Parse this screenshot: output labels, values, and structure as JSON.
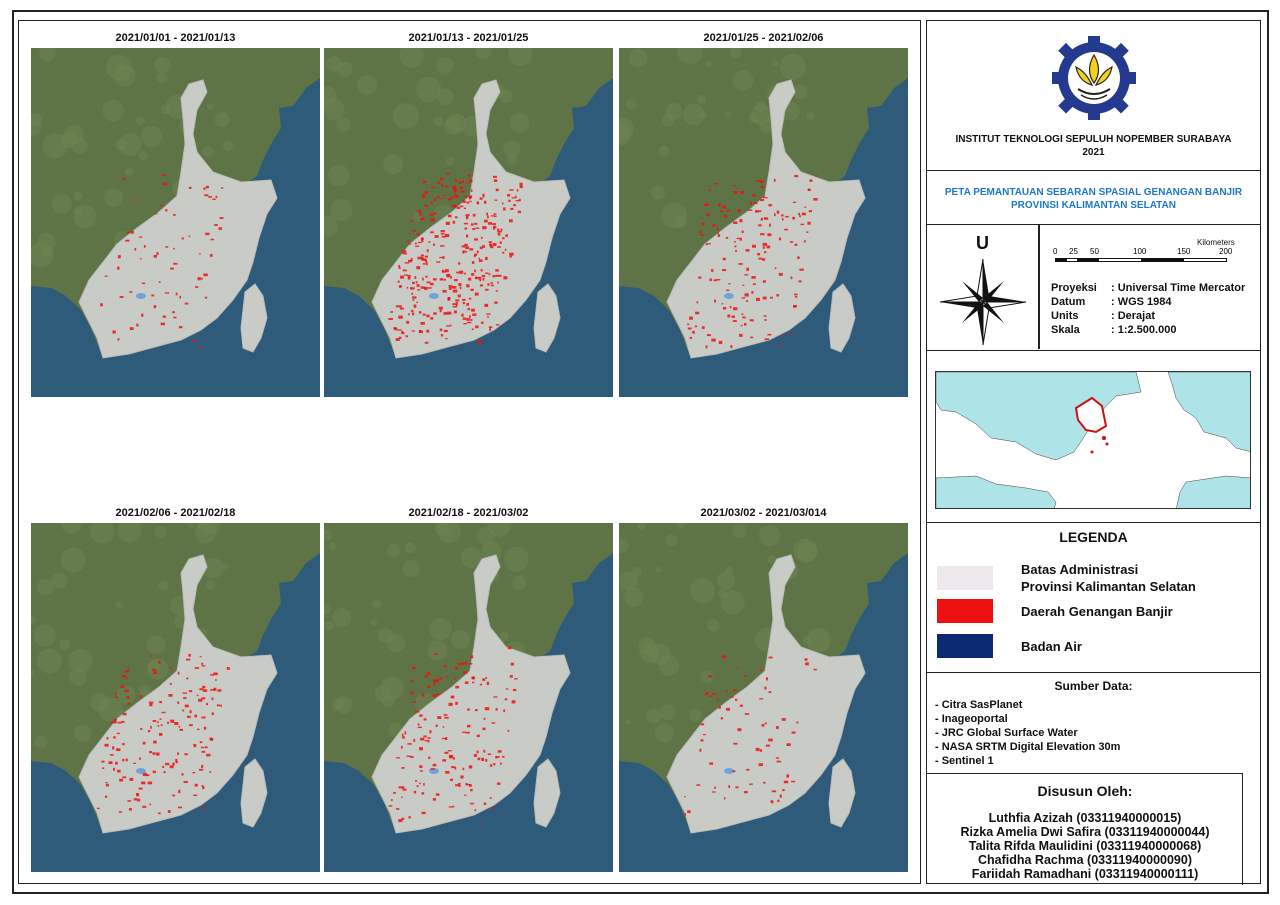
{
  "panels": [
    {
      "title": "2021/01/01 - 2021/01/13",
      "flood_level": "low"
    },
    {
      "title": "2021/01/13 - 2021/01/25",
      "flood_level": "high"
    },
    {
      "title": "2021/01/25 - 2021/02/06",
      "flood_level": "medium"
    },
    {
      "title": "2021/02/06 - 2021/02/18",
      "flood_level": "medium"
    },
    {
      "title": "2021/02/18 - 2021/03/02",
      "flood_level": "medium"
    },
    {
      "title": "2021/03/02 - 2021/03/014",
      "flood_level": "low"
    }
  ],
  "header": {
    "institution": "INSTITUT TEKNOLOGI SEPULUH NOPEMBER SURABAYA",
    "year": "2021"
  },
  "map_title": {
    "line1": "PETA PEMANTAUAN SEBARAN SPASIAL GENANGAN BANJIR",
    "line2": "PROVINSI KALIMANTAN SELATAN"
  },
  "north_arrow": {
    "label": "U"
  },
  "scale_bar": {
    "unit": "Kilometers",
    "ticks": [
      "0",
      "25",
      "50",
      "100",
      "150",
      "200"
    ]
  },
  "projection": [
    {
      "key": "Proyeksi",
      "value": ": Universal Time Mercator"
    },
    {
      "key": "Datum",
      "value": ": WGS 1984"
    },
    {
      "key": "Units",
      "value": ": Derajat"
    },
    {
      "key": "Skala",
      "value": ": 1:2.500.000"
    }
  ],
  "legend": {
    "title": "LEGENDA",
    "items": [
      {
        "line1": "Batas Administrasi",
        "line2": "Provinsi Kalimantan Selatan",
        "color": "#ece8ec"
      },
      {
        "line1": "Daerah Genangan Banjir",
        "line2": "",
        "color": "#ee1111"
      },
      {
        "line1": "Badan Air",
        "line2": "",
        "color": "#0b2a73"
      }
    ]
  },
  "sources": {
    "title": "Sumber Data:",
    "items": [
      "- Citra SasPlanet",
      "- Inageoportal",
      "- JRC Global Surface Water",
      "- NASA SRTM Digital Elevation 30m",
      "- Sentinel 1"
    ]
  },
  "authors": {
    "title": "Disusun Oleh:",
    "names": [
      "Luthfia Azizah (03311940000015)",
      "Rizka Amelia Dwi Safira (03311940000044)",
      "Talita Rifda Maulidini (03311940000068)",
      "Chafidha Rachma (03311940000090)",
      "Fariidah Ramadhani (03311940000111)"
    ]
  },
  "colors": {
    "ocean": "#2f5b7a",
    "land": "#5f7446",
    "province": "#c9cbc6",
    "flood": "#ee1111",
    "water": "#4a90e2",
    "inset_sea": "#aee3e8",
    "title_blue": "#1e78c8"
  }
}
